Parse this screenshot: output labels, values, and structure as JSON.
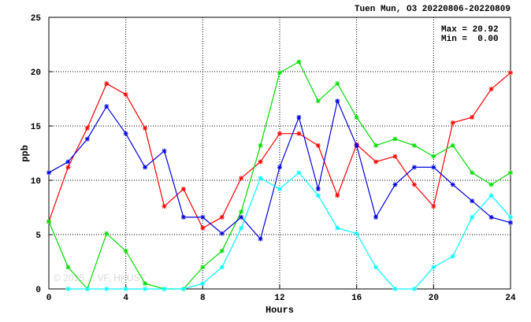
{
  "chart_data": {
    "type": "line",
    "title": "Tuen Mun, O3 20220806-20220809",
    "xlabel": "Hours",
    "ylabel": "ppb",
    "xlim": [
      0,
      24
    ],
    "ylim": [
      0,
      25
    ],
    "xticks": [
      0,
      4,
      8,
      12,
      16,
      20,
      24
    ],
    "yticks": [
      0,
      5,
      10,
      15,
      20,
      25
    ],
    "grid": true,
    "stats": {
      "max_label": "Max = 20.92",
      "min_label": "Min =  0.00"
    },
    "watermark": "© 2015 ... VF, HKUST",
    "x": [
      0,
      1,
      2,
      3,
      4,
      5,
      6,
      7,
      8,
      9,
      10,
      11,
      12,
      13,
      14,
      15,
      16,
      17,
      18,
      19,
      20,
      21,
      22,
      23,
      24
    ],
    "series": [
      {
        "color": "#ff0000",
        "values": [
          6.2,
          11.2,
          14.8,
          18.9,
          17.9,
          14.8,
          7.6,
          9.2,
          5.6,
          6.6,
          10.2,
          11.7,
          14.3,
          14.3,
          13.2,
          8.6,
          13.3,
          11.7,
          12.2,
          9.6,
          7.6,
          15.3,
          15.8,
          18.4,
          19.9
        ]
      },
      {
        "color": "#00dd00",
        "values": [
          6.2,
          2.0,
          0.0,
          5.1,
          3.5,
          0.5,
          0.0,
          0.0,
          2.0,
          3.5,
          7.1,
          13.2,
          19.9,
          20.9,
          17.3,
          18.9,
          15.8,
          13.2,
          13.8,
          13.2,
          12.2,
          13.2,
          10.7,
          9.6,
          10.7
        ]
      },
      {
        "color": "#0000dd",
        "values": [
          10.7,
          11.7,
          13.8,
          16.8,
          14.3,
          11.2,
          12.7,
          6.6,
          6.6,
          5.1,
          6.6,
          4.6,
          11.2,
          15.8,
          9.2,
          17.3,
          13.2,
          6.6,
          9.6,
          11.2,
          11.2,
          9.6,
          8.1,
          6.6,
          6.1
        ]
      },
      {
        "color": "#00ffff",
        "values": [
          null,
          0.0,
          0.0,
          0.0,
          0.0,
          0.0,
          0.0,
          0.0,
          0.5,
          2.0,
          5.6,
          10.2,
          9.2,
          10.7,
          8.6,
          5.6,
          5.1,
          2.0,
          0.0,
          0.0,
          2.0,
          3.0,
          6.6,
          8.6,
          6.6
        ]
      }
    ]
  }
}
